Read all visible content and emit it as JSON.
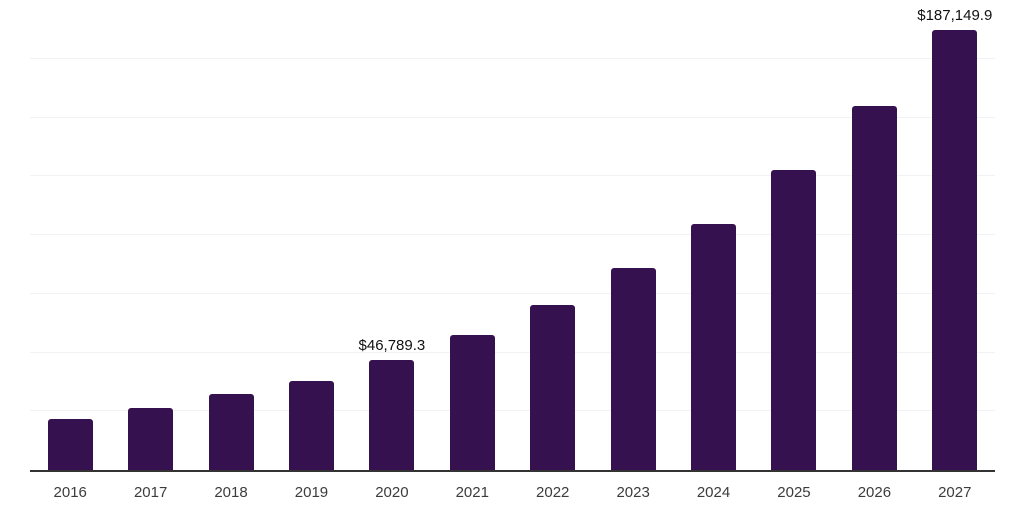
{
  "chart_data": {
    "type": "bar",
    "title": "",
    "categories": [
      "2016",
      "2017",
      "2018",
      "2019",
      "2020",
      "2021",
      "2022",
      "2023",
      "2024",
      "2025",
      "2026",
      "2027"
    ],
    "values": [
      21600,
      26300,
      32300,
      38000,
      46789.3,
      57400,
      70200,
      86000,
      104700,
      127700,
      155000,
      187149.9
    ],
    "data_labels": [
      "",
      "",
      "",
      "",
      "$46,789.3",
      "",
      "",
      "",
      "",
      "",
      "",
      "$187,149.9"
    ],
    "xlabel": "",
    "ylabel": "",
    "ylim": [
      0,
      200000
    ],
    "grid_step": 25000,
    "grid": "on",
    "legend": "none",
    "bar_color": "#36114F",
    "axis_line_color": "#333333",
    "gridline_color": "#f2f2f4",
    "tick_label_color": "#3c3c3c",
    "value_label_color": "#111111"
  }
}
